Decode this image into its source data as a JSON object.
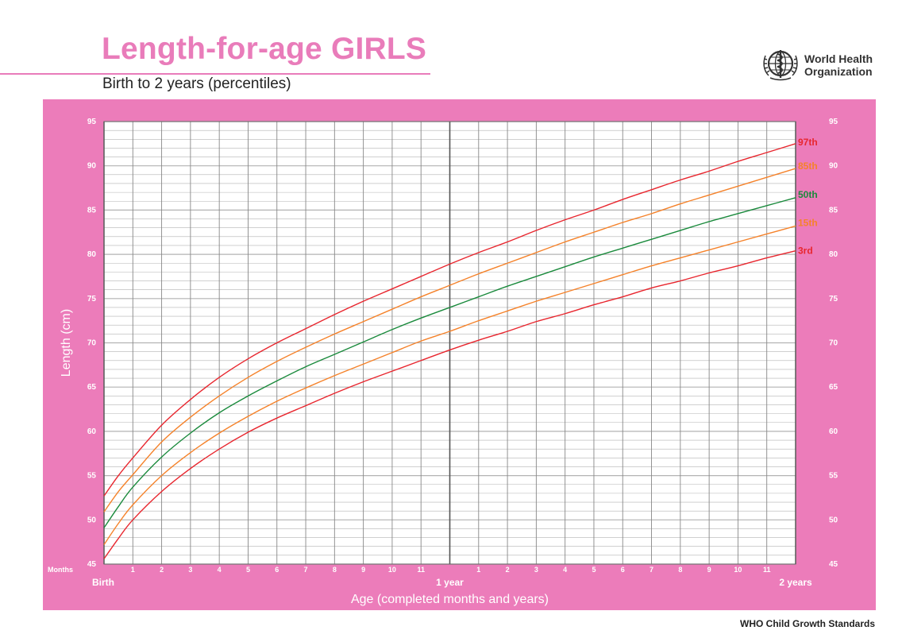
{
  "header": {
    "title": "Length-for-age GIRLS",
    "subtitle": "Birth to 2 years (percentiles)",
    "org_name_line1": "World Health",
    "org_name_line2": "Organization",
    "logo_icon": "who-emblem-icon"
  },
  "footer": {
    "text": "WHO Child Growth Standards"
  },
  "colors": {
    "panel": "#ec7cba",
    "title": "#e97cba",
    "plot_bg": "#ffffff",
    "grid": "#b3b3b3",
    "major_grid": "#555555",
    "p3": "#e8262e",
    "p15": "#f5822a",
    "p50": "#1a8a3c",
    "p85": "#f5822a",
    "p97": "#e8262e"
  },
  "chart_data": {
    "type": "line",
    "title": "Length-for-age GIRLS",
    "subtitle": "Birth to 2 years (percentiles)",
    "xlabel": "Age (completed months and years)",
    "ylabel": "Length (cm)",
    "x_unit_label": "Months",
    "xlim": [
      0,
      24
    ],
    "ylim": [
      45,
      95
    ],
    "x_ticks": [
      {
        "x": 0,
        "label": ""
      },
      {
        "x": 1,
        "label": "1"
      },
      {
        "x": 2,
        "label": "2"
      },
      {
        "x": 3,
        "label": "3"
      },
      {
        "x": 4,
        "label": "4"
      },
      {
        "x": 5,
        "label": "5"
      },
      {
        "x": 6,
        "label": "6"
      },
      {
        "x": 7,
        "label": "7"
      },
      {
        "x": 8,
        "label": "8"
      },
      {
        "x": 9,
        "label": "9"
      },
      {
        "x": 10,
        "label": "10"
      },
      {
        "x": 11,
        "label": "11"
      },
      {
        "x": 12,
        "label": ""
      },
      {
        "x": 13,
        "label": "1"
      },
      {
        "x": 14,
        "label": "2"
      },
      {
        "x": 15,
        "label": "3"
      },
      {
        "x": 16,
        "label": "4"
      },
      {
        "x": 17,
        "label": "5"
      },
      {
        "x": 18,
        "label": "6"
      },
      {
        "x": 19,
        "label": "7"
      },
      {
        "x": 20,
        "label": "8"
      },
      {
        "x": 21,
        "label": "9"
      },
      {
        "x": 22,
        "label": "10"
      },
      {
        "x": 23,
        "label": "11"
      },
      {
        "x": 24,
        "label": ""
      }
    ],
    "x_period_labels": [
      {
        "x": 0,
        "label": "Birth"
      },
      {
        "x": 12,
        "label": "1 year"
      },
      {
        "x": 24,
        "label": "2 years"
      }
    ],
    "y_ticks": [
      45,
      50,
      55,
      60,
      65,
      70,
      75,
      80,
      85,
      90,
      95
    ],
    "y_minor_step": 1,
    "grid": true,
    "x": [
      0,
      0.5,
      1,
      2,
      3,
      4,
      5,
      6,
      7,
      8,
      9,
      10,
      11,
      12,
      13,
      14,
      15,
      16,
      17,
      18,
      19,
      20,
      21,
      22,
      23,
      24
    ],
    "series": [
      {
        "name": "97th",
        "color_key": "p97",
        "values": [
          52.7,
          55.0,
          57.0,
          60.7,
          63.6,
          66.1,
          68.2,
          70.0,
          71.6,
          73.2,
          74.7,
          76.1,
          77.5,
          78.9,
          80.2,
          81.4,
          82.7,
          83.9,
          85.0,
          86.2,
          87.3,
          88.4,
          89.4,
          90.5,
          91.5,
          92.5
        ]
      },
      {
        "name": "85th",
        "color_key": "p85",
        "values": [
          50.9,
          53.2,
          55.1,
          58.8,
          61.6,
          64.0,
          66.1,
          67.9,
          69.5,
          71.0,
          72.4,
          73.8,
          75.2,
          76.5,
          77.8,
          79.0,
          80.2,
          81.4,
          82.5,
          83.6,
          84.6,
          85.7,
          86.7,
          87.7,
          88.7,
          89.7
        ]
      },
      {
        "name": "50th",
        "color_key": "p50",
        "values": [
          49.1,
          51.5,
          53.7,
          57.1,
          59.8,
          62.1,
          64.0,
          65.7,
          67.3,
          68.7,
          70.1,
          71.5,
          72.8,
          74.0,
          75.2,
          76.4,
          77.5,
          78.6,
          79.7,
          80.7,
          81.7,
          82.7,
          83.7,
          84.6,
          85.5,
          86.4
        ]
      },
      {
        "name": "15th",
        "color_key": "p15",
        "values": [
          47.2,
          49.6,
          51.7,
          55.0,
          57.6,
          59.8,
          61.7,
          63.4,
          64.9,
          66.3,
          67.6,
          68.9,
          70.2,
          71.3,
          72.5,
          73.6,
          74.7,
          75.7,
          76.7,
          77.7,
          78.7,
          79.6,
          80.5,
          81.4,
          82.3,
          83.2
        ]
      },
      {
        "name": "3rd",
        "color_key": "p3",
        "values": [
          45.6,
          47.9,
          50.0,
          53.2,
          55.8,
          58.0,
          59.9,
          61.5,
          62.9,
          64.3,
          65.6,
          66.8,
          68.0,
          69.2,
          70.3,
          71.3,
          72.4,
          73.3,
          74.3,
          75.2,
          76.2,
          77.0,
          77.9,
          78.7,
          79.6,
          80.4
        ]
      }
    ]
  }
}
